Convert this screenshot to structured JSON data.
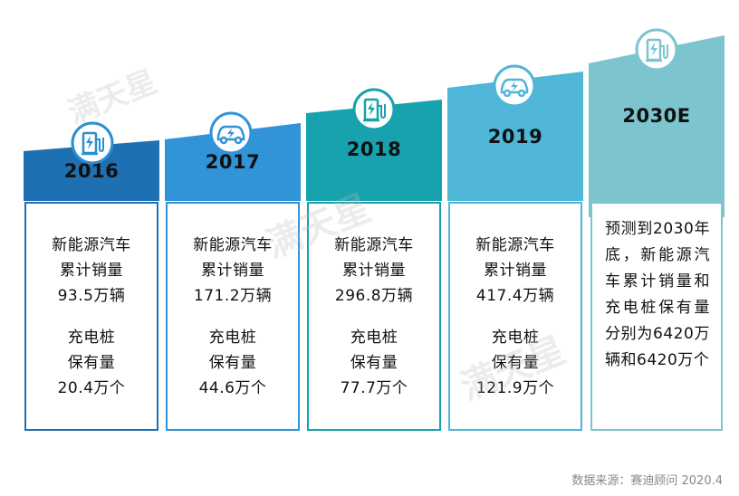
{
  "columns": [
    {
      "year": "2016",
      "lines1": [
        "新能源汽车",
        "累计销量",
        "93.5万辆"
      ],
      "lines2": [
        "充电桩",
        "保有量",
        "20.4万个"
      ],
      "icon": "charging-pile-icon",
      "color": "#1f70b2"
    },
    {
      "year": "2017",
      "lines1": [
        "新能源汽车",
        "累计销量",
        "171.2万辆"
      ],
      "lines2": [
        "充电桩",
        "保有量",
        "44.6万个"
      ],
      "icon": "electric-car-icon",
      "color": "#3193d8"
    },
    {
      "year": "2018",
      "lines1": [
        "新能源汽车",
        "累计销量",
        "296.8万辆"
      ],
      "lines2": [
        "充电桩",
        "保有量",
        "77.7万个"
      ],
      "icon": "charging-pile-icon",
      "color": "#17a2ad"
    },
    {
      "year": "2019",
      "lines1": [
        "新能源汽车",
        "累计销量",
        "417.4万辆"
      ],
      "lines2": [
        "充电桩",
        "保有量",
        "121.9万个"
      ],
      "icon": "electric-car-icon",
      "color": "#4fb6d8"
    },
    {
      "year": "2030E",
      "text": "预测到2030年底，新能源汽车累计销量和充电桩保有量分别为6420万辆和6420万个",
      "icon": "charging-pile-icon",
      "color": "#7cc4ce"
    }
  ],
  "source": "数据来源：赛迪顾问 2020.4",
  "watermark": "满天星"
}
